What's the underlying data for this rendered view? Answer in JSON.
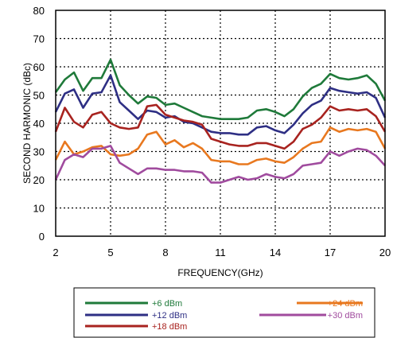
{
  "chart_data": {
    "type": "line",
    "xlabel": "FREQUENCY(GHz)",
    "ylabel": "SECOND HARMONIC (dBc)",
    "xlim": [
      2,
      20
    ],
    "ylim": [
      0,
      80
    ],
    "x_ticks": [
      2,
      5,
      8,
      11,
      14,
      17,
      20
    ],
    "y_ticks": [
      0,
      10,
      20,
      30,
      40,
      50,
      60,
      70,
      80
    ],
    "grid": "dotted",
    "legend_position": "below",
    "x": [
      2,
      2.5,
      3,
      3.5,
      4,
      4.5,
      5,
      5.5,
      6,
      6.5,
      7,
      7.5,
      8,
      8.5,
      9,
      9.5,
      10,
      10.5,
      11,
      11.5,
      12,
      12.5,
      13,
      13.5,
      14,
      14.5,
      15,
      15.5,
      16,
      16.5,
      17,
      17.5,
      18,
      18.5,
      19,
      19.5,
      20
    ],
    "series": [
      {
        "name": "+6 dBm",
        "color": "#1f7a3a",
        "values": [
          51,
          55.5,
          58,
          51.5,
          56,
          56,
          62.5,
          53.5,
          50,
          47,
          49.5,
          49,
          46.5,
          47,
          45.5,
          44,
          42.5,
          42,
          41.5,
          41.5,
          41.5,
          42,
          44.5,
          45,
          44,
          42.5,
          45,
          49.5,
          52.5,
          54,
          57.5,
          56,
          55.5,
          56,
          57,
          54,
          48
        ]
      },
      {
        "name": "+12 dBm",
        "color": "#2e2f84",
        "values": [
          44,
          50.5,
          52,
          45.5,
          50.5,
          51,
          57,
          47.5,
          44.5,
          41.5,
          44.5,
          44,
          42,
          42.5,
          40.5,
          40,
          38.5,
          37,
          36.5,
          36.5,
          36,
          36,
          38.5,
          39,
          37.5,
          36.5,
          39.5,
          43.5,
          46.5,
          48,
          52.5,
          51.5,
          51,
          50.5,
          51,
          49,
          42
        ]
      },
      {
        "name": "+18 dBm",
        "color": "#a8231f",
        "values": [
          37,
          45.5,
          40.5,
          38.5,
          43,
          44,
          40,
          38.5,
          38,
          38.5,
          46,
          46.5,
          43,
          42,
          41,
          40.5,
          39.5,
          34.5,
          33.5,
          32.5,
          32,
          32,
          33,
          33,
          32,
          31,
          33.5,
          38,
          39.5,
          42,
          46,
          44.5,
          45,
          44.5,
          45,
          42.5,
          37
        ]
      },
      {
        "name": "+24 dBm",
        "color": "#e8781f",
        "values": [
          27,
          33.5,
          29,
          30,
          31.5,
          32,
          29,
          28.5,
          29,
          31,
          36,
          37,
          32.5,
          34,
          31.5,
          33,
          31,
          27,
          26.5,
          26.5,
          25.5,
          25.5,
          27,
          27.5,
          26.5,
          26,
          28,
          31,
          33,
          33.5,
          38.5,
          37,
          38,
          37.5,
          38,
          37,
          31
        ]
      },
      {
        "name": "+30 dBm",
        "color": "#a04b9e",
        "values": [
          20,
          27,
          29,
          28,
          31,
          31,
          32,
          26,
          24,
          22,
          24,
          24,
          23.5,
          23.5,
          23,
          23,
          22.5,
          19,
          19,
          20,
          21,
          20,
          20.5,
          22,
          21,
          20.5,
          22,
          25,
          25.5,
          26,
          30,
          28.5,
          30,
          31,
          30.5,
          28.5,
          25
        ]
      }
    ]
  }
}
